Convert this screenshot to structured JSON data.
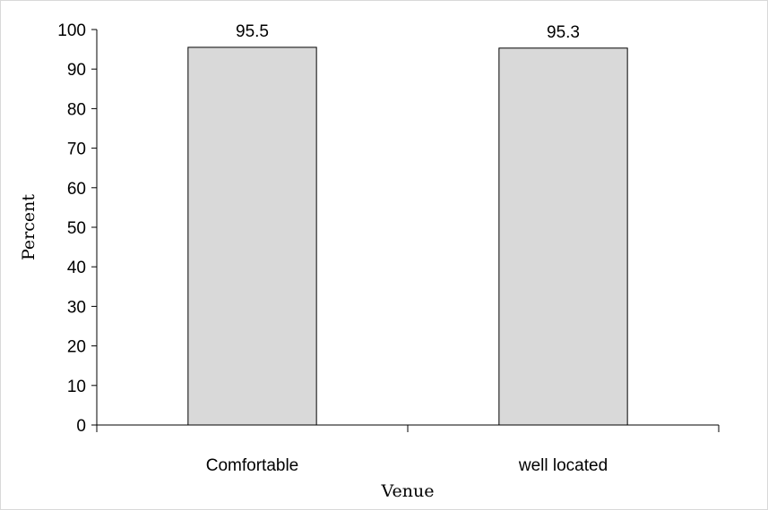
{
  "chart_data": {
    "type": "bar",
    "categories": [
      "Comfortable",
      "well located"
    ],
    "values": [
      95.5,
      95.3
    ],
    "data_labels": [
      "95.5",
      "95.3"
    ],
    "title": "",
    "xlabel": "Venue",
    "ylabel": "Percent",
    "ylim": [
      0,
      100
    ],
    "yticks": [
      0,
      10,
      20,
      30,
      40,
      50,
      60,
      70,
      80,
      90,
      100
    ],
    "grid": false,
    "legend": "none",
    "bar_color": "#d9d9d9",
    "bar_edge_color": "#000000"
  }
}
